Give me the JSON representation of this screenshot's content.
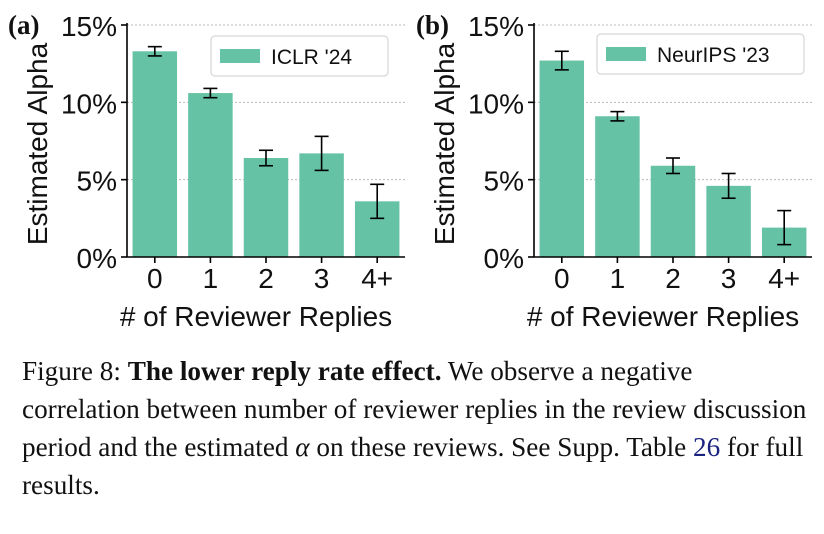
{
  "colors": {
    "bar": "#66c2a5",
    "text": "#111111",
    "grid": "#b8b8b8",
    "ref_link": "#1a237e"
  },
  "chart_data": [
    {
      "panel_label": "(a)",
      "type": "bar",
      "categories": [
        "0",
        "1",
        "2",
        "3",
        "4+"
      ],
      "series": [
        {
          "name": "ICLR '24",
          "values": [
            13.3,
            10.6,
            6.4,
            6.7,
            3.6
          ],
          "error": [
            0.3,
            0.3,
            0.5,
            1.1,
            1.1
          ]
        }
      ],
      "legend": "ICLR '24",
      "legend_position": "top-right",
      "xlabel": "# of Reviewer Replies",
      "ylabel": "Estimated Alpha",
      "ylim": [
        0,
        15
      ],
      "yticks": [
        0,
        5,
        10,
        15
      ],
      "ytick_labels": [
        "0%",
        "5%",
        "10%",
        "15%"
      ],
      "grid": "y"
    },
    {
      "panel_label": "(b)",
      "type": "bar",
      "categories": [
        "0",
        "1",
        "2",
        "3",
        "4+"
      ],
      "series": [
        {
          "name": "NeurIPS '23",
          "values": [
            12.7,
            9.1,
            5.9,
            4.6,
            1.9
          ],
          "error": [
            0.6,
            0.3,
            0.5,
            0.8,
            1.1
          ]
        }
      ],
      "legend": "NeurIPS '23",
      "legend_position": "top-right",
      "xlabel": "# of Reviewer Replies",
      "ylabel": "Estimated Alpha",
      "ylim": [
        0,
        15
      ],
      "yticks": [
        0,
        5,
        10,
        15
      ],
      "ytick_labels": [
        "0%",
        "5%",
        "10%",
        "15%"
      ],
      "grid": "y"
    }
  ],
  "caption": {
    "label": "Figure 8:",
    "bold": "The lower reply rate effect.",
    "text1": "We observe a negative correlation between number of reviewer replies in the review discussion period and the estimated",
    "symbol": "α",
    "text2": "on these reviews. See Supp. Table",
    "ref": "26",
    "text3": "for full results."
  }
}
